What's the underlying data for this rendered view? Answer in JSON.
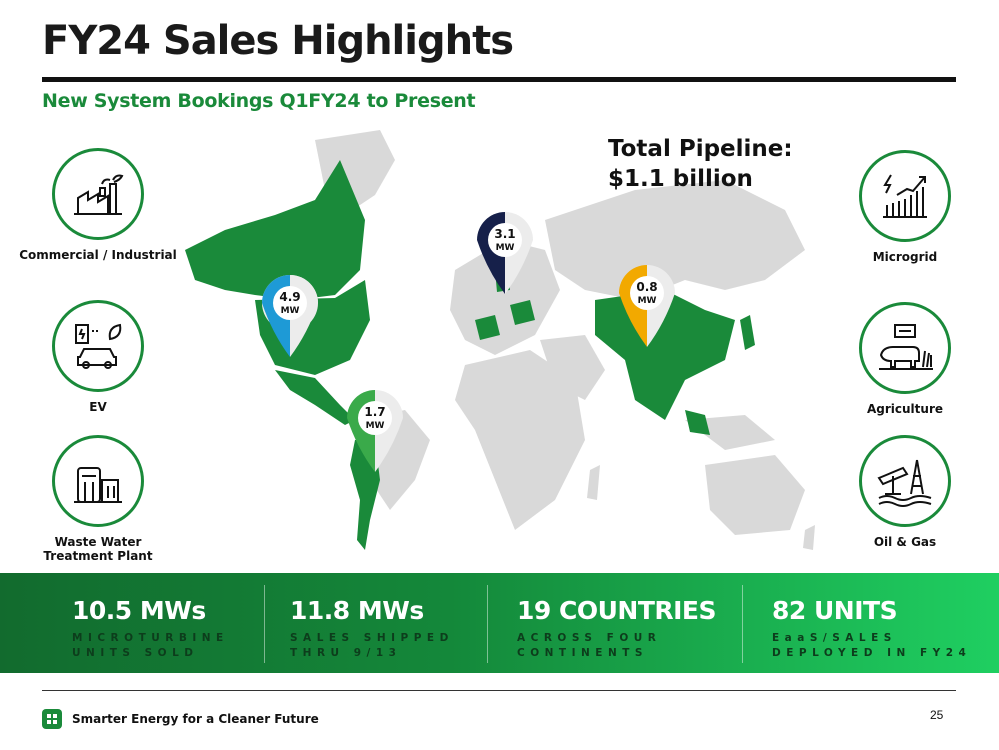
{
  "header": {
    "title": "FY24 Sales Highlights",
    "subtitle": "New System Bookings Q1FY24 to Present"
  },
  "pipeline": {
    "line1": "Total Pipeline:",
    "line2": "$1.1 billion"
  },
  "categories": [
    {
      "label": "Commercial / Industrial",
      "icon": "factory-icon"
    },
    {
      "label": "EV",
      "icon": "ev-charging-icon"
    },
    {
      "label": "Waste Water Treatment Plant",
      "icon": "water-tank-icon"
    },
    {
      "label": "Microgrid",
      "icon": "growth-chart-icon"
    },
    {
      "label": "Agriculture",
      "icon": "cow-icon"
    },
    {
      "label": "Oil & Gas",
      "icon": "oil-rig-icon"
    }
  ],
  "pins": [
    {
      "value": "4.9",
      "unit": "MW",
      "color": "#1e9ad6",
      "region": "North America"
    },
    {
      "value": "1.7",
      "unit": "MW",
      "color": "#3aaa4a",
      "region": "South America"
    },
    {
      "value": "3.1",
      "unit": "MW",
      "color": "#16204a",
      "region": "Europe"
    },
    {
      "value": "0.8",
      "unit": "MW",
      "color": "#f2a900",
      "region": "Asia"
    }
  ],
  "stats": [
    {
      "value": "10.5 MWs",
      "line1": "MICROTURBINE",
      "line2": "UNITS SOLD"
    },
    {
      "value": "11.8 MWs",
      "line1": "SALES SHIPPED",
      "line2": "THRU 9/13"
    },
    {
      "value": "19 COUNTRIES",
      "line1": "ACROSS FOUR",
      "line2": "CONTINENTS"
    },
    {
      "value": "82 UNITS",
      "line1": "EaaS/SALES",
      "line2": "DEPLOYED IN FY24"
    }
  ],
  "footer": {
    "tagline": "Smarter Energy for a Cleaner Future",
    "page": "25"
  },
  "colors": {
    "brand_green": "#1a8a3a",
    "map_highlight": "#1a8a3a",
    "map_base": "#d9d9d9"
  }
}
